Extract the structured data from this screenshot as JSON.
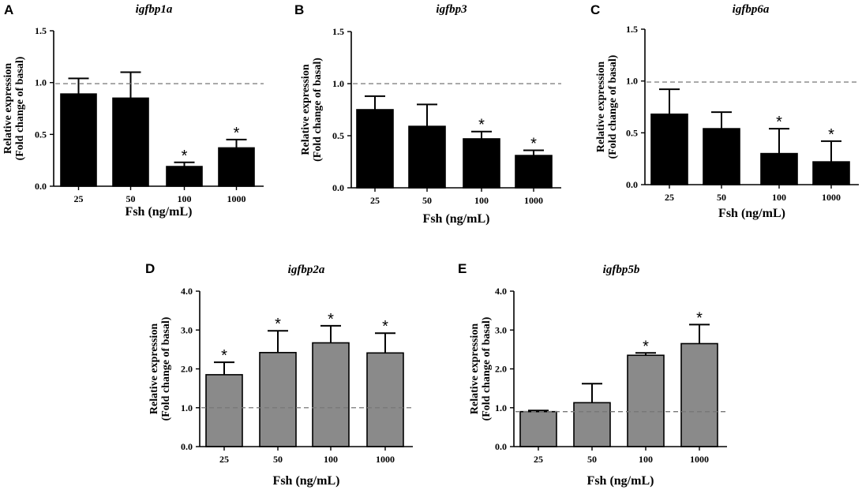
{
  "chart_data": [
    {
      "panel": "A",
      "type": "bar",
      "title": "igfbp1a",
      "xlabel": "Fsh (ng/mL)",
      "ylabel_line1": "Relative expression",
      "ylabel_line2": "(Fold change of basal)",
      "categories": [
        "25",
        "50",
        "100",
        "1000"
      ],
      "values": [
        0.89,
        0.85,
        0.19,
        0.37
      ],
      "errors": [
        0.15,
        0.25,
        0.04,
        0.08
      ],
      "significant": [
        false,
        false,
        true,
        true
      ],
      "ylim": [
        0,
        1.5
      ],
      "yticks": [
        0,
        0.5,
        1.0,
        1.5
      ],
      "ytick_labels": [
        "0.0",
        "0.5",
        "1.0",
        "1.5"
      ],
      "reference_line": 0.99,
      "bar_color": "#000000",
      "star_label": "*"
    },
    {
      "panel": "B",
      "type": "bar",
      "title": "igfbp3",
      "xlabel": "Fsh (ng/mL)",
      "ylabel_line1": "Relative expression",
      "ylabel_line2": "(Fold change of basal)",
      "categories": [
        "25",
        "50",
        "100",
        "1000"
      ],
      "values": [
        0.75,
        0.59,
        0.47,
        0.31
      ],
      "errors": [
        0.13,
        0.21,
        0.07,
        0.05
      ],
      "significant": [
        false,
        false,
        true,
        true
      ],
      "ylim": [
        0,
        1.5
      ],
      "yticks": [
        0,
        0.5,
        1.0,
        1.5
      ],
      "ytick_labels": [
        "0.0",
        "0.5",
        "1.0",
        "1.5"
      ],
      "reference_line": 1.0,
      "bar_color": "#000000",
      "star_label": "*"
    },
    {
      "panel": "C",
      "type": "bar",
      "title": "igfbp6a",
      "xlabel": "Fsh (ng/mL)",
      "ylabel_line1": "Relative expression",
      "ylabel_line2": "(Fold change of basal)",
      "categories": [
        "25",
        "50",
        "100",
        "1000"
      ],
      "values": [
        0.68,
        0.54,
        0.3,
        0.22
      ],
      "errors": [
        0.24,
        0.16,
        0.24,
        0.2
      ],
      "significant": [
        false,
        false,
        true,
        true
      ],
      "ylim": [
        0,
        1.5
      ],
      "yticks": [
        0,
        0.5,
        1.0,
        1.5
      ],
      "ytick_labels": [
        "0.0",
        "0.5",
        "1.0",
        "1.5"
      ],
      "reference_line": 0.99,
      "bar_color": "#000000",
      "star_label": "*"
    },
    {
      "panel": "D",
      "type": "bar",
      "title": "igfbp2a",
      "xlabel": "Fsh (ng/mL)",
      "ylabel_line1": "Relative expression",
      "ylabel_line2": "(Fold change of basal)",
      "categories": [
        "25",
        "50",
        "100",
        "1000"
      ],
      "values": [
        1.85,
        2.42,
        2.67,
        2.41
      ],
      "errors": [
        0.32,
        0.56,
        0.44,
        0.51
      ],
      "significant": [
        true,
        true,
        true,
        true
      ],
      "ylim": [
        0,
        4.0
      ],
      "yticks": [
        0,
        1.0,
        2.0,
        3.0,
        4.0
      ],
      "ytick_labels": [
        "0.0",
        "1.0",
        "2.0",
        "3.0",
        "4.0"
      ],
      "reference_line": 1.0,
      "bar_color": "#8a8a8a",
      "star_label": "*"
    },
    {
      "panel": "E",
      "type": "bar",
      "title": "igfbp5b",
      "xlabel": "Fsh (ng/mL)",
      "ylabel_line1": "Relative expression",
      "ylabel_line2": "(Fold change of basal)",
      "categories": [
        "25",
        "50",
        "100",
        "1000"
      ],
      "values": [
        0.9,
        1.13,
        2.35,
        2.65
      ],
      "errors": [
        0.03,
        0.49,
        0.06,
        0.49
      ],
      "significant": [
        false,
        false,
        true,
        true
      ],
      "ylim": [
        0,
        4.0
      ],
      "yticks": [
        0,
        1.0,
        2.0,
        3.0,
        4.0
      ],
      "ytick_labels": [
        "0.0",
        "1.0",
        "2.0",
        "3.0",
        "4.0"
      ],
      "reference_line": 0.9,
      "bar_color": "#8a8a8a",
      "star_label": "*"
    }
  ]
}
